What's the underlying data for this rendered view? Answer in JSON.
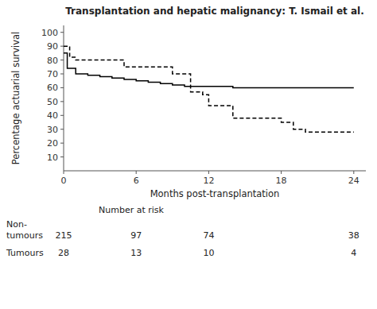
{
  "chart_data": {
    "type": "step",
    "title": "Transplantation and hepatic malignancy: T. Ismail et al.",
    "x_label": "Months post-transplantation",
    "y_label": "Percentage actuarial survival",
    "xlim": [
      0,
      25
    ],
    "ylim": [
      0,
      105
    ],
    "xticks": [
      0,
      6,
      12,
      18,
      24
    ],
    "yticks": [
      10,
      20,
      30,
      40,
      50,
      60,
      70,
      80,
      90,
      100
    ],
    "grid": false,
    "series": [
      {
        "color": "#000000",
        "line_style": "solid",
        "x": [
          0,
          0.3,
          1,
          2,
          3,
          4,
          5,
          6,
          7,
          8,
          9,
          10,
          11,
          12,
          13,
          14,
          15,
          16,
          17,
          18,
          19,
          20,
          21,
          22,
          23,
          24
        ],
        "values": [
          85,
          74,
          70,
          69,
          68,
          67,
          66,
          65,
          64,
          63,
          62,
          61,
          61,
          61,
          61,
          60,
          60,
          60,
          60,
          60,
          60,
          60,
          60,
          60,
          60,
          60
        ]
      },
      {
        "color": "#000000",
        "line_style": "dashed",
        "x": [
          0,
          0.5,
          1,
          2,
          3,
          4,
          5,
          6,
          7,
          8,
          9,
          10,
          10.5,
          11,
          11.5,
          12,
          13,
          14,
          15,
          16,
          17,
          18,
          19,
          20,
          21,
          22,
          23,
          24
        ],
        "values": [
          90,
          82,
          80,
          80,
          80,
          80,
          75,
          75,
          75,
          75,
          70,
          70,
          57,
          57,
          55,
          47,
          47,
          38,
          38,
          38,
          38,
          35,
          30,
          28,
          28,
          28,
          28,
          28
        ]
      }
    ],
    "risk_table": {
      "label": "Number at risk",
      "x": [
        0,
        6,
        12,
        24
      ],
      "rows": [
        {
          "label_lines": [
            "Non-",
            "tumours"
          ],
          "values": [
            215,
            97,
            74,
            38
          ]
        },
        {
          "label_lines": [
            "Tumours"
          ],
          "values": [
            28,
            13,
            10,
            4
          ]
        }
      ]
    }
  }
}
